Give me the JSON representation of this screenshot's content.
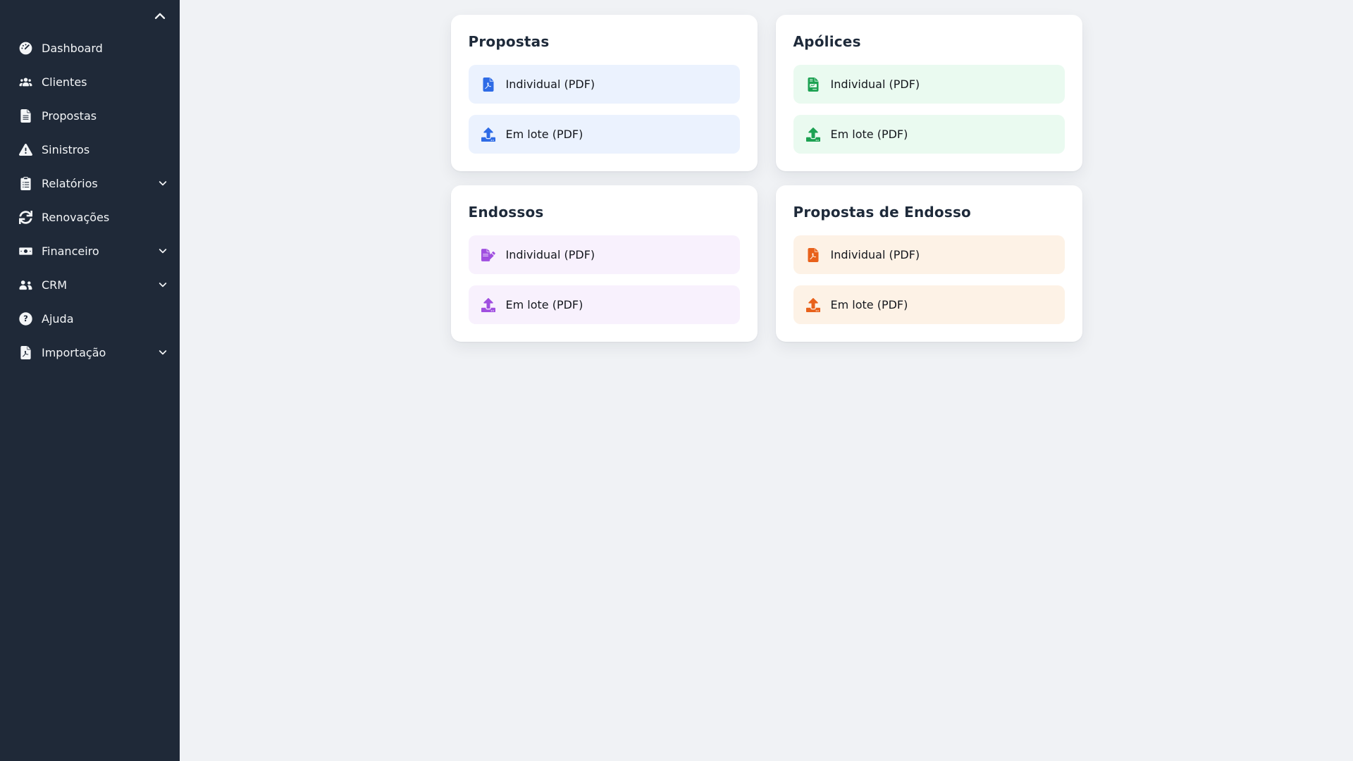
{
  "colors": {
    "sidebar_bg": "#1f2938",
    "sidebar_text": "#f3f5f7",
    "main_bg": "#f0f2f5",
    "card_bg": "#ffffff",
    "card_title": "#1e2a3a",
    "action_text": "#15181e"
  },
  "sidebar": {
    "collapse_icon": "chevron-up-icon",
    "items": [
      {
        "label": "Dashboard",
        "icon": "gauge-icon",
        "expandable": false
      },
      {
        "label": "Clientes",
        "icon": "users-icon",
        "expandable": false
      },
      {
        "label": "Propostas",
        "icon": "file-alt-icon",
        "expandable": false
      },
      {
        "label": "Sinistros",
        "icon": "warning-triangle-icon",
        "expandable": false
      },
      {
        "label": "Relatórios",
        "icon": "clipboard-list-icon",
        "expandable": true
      },
      {
        "label": "Renovações",
        "icon": "sync-icon",
        "expandable": false
      },
      {
        "label": "Financeiro",
        "icon": "money-bill-icon",
        "expandable": true
      },
      {
        "label": "CRM",
        "icon": "user-friends-icon",
        "expandable": true
      },
      {
        "label": "Ajuda",
        "icon": "question-circle-icon",
        "expandable": false
      },
      {
        "label": "Importação",
        "icon": "file-pdf-icon",
        "expandable": true
      }
    ]
  },
  "cards": [
    {
      "title": "Propostas",
      "theme": {
        "accent": "#2e6be6",
        "row_bg": "#ebf2fe"
      },
      "actions": [
        {
          "label": "Individual (PDF)",
          "icon": "file-pdf-icon"
        },
        {
          "label": "Em lote (PDF)",
          "icon": "upload-icon"
        }
      ]
    },
    {
      "title": "Apólices",
      "theme": {
        "accent": "#1ca152",
        "row_bg": "#eafaf0"
      },
      "actions": [
        {
          "label": "Individual (PDF)",
          "icon": "file-invoice-icon"
        },
        {
          "label": "Em lote (PDF)",
          "icon": "upload-icon"
        }
      ]
    },
    {
      "title": "Endossos",
      "theme": {
        "accent": "#a04fe0",
        "row_bg": "#f8f1fd"
      },
      "actions": [
        {
          "label": "Individual (PDF)",
          "icon": "file-signature-icon"
        },
        {
          "label": "Em lote (PDF)",
          "icon": "upload-icon"
        }
      ]
    },
    {
      "title": "Propostas de Endosso",
      "theme": {
        "accent": "#e8611b",
        "row_bg": "#fdf2e6"
      },
      "actions": [
        {
          "label": "Individual (PDF)",
          "icon": "file-pdf-icon"
        },
        {
          "label": "Em lote (PDF)",
          "icon": "upload-icon"
        }
      ]
    }
  ]
}
